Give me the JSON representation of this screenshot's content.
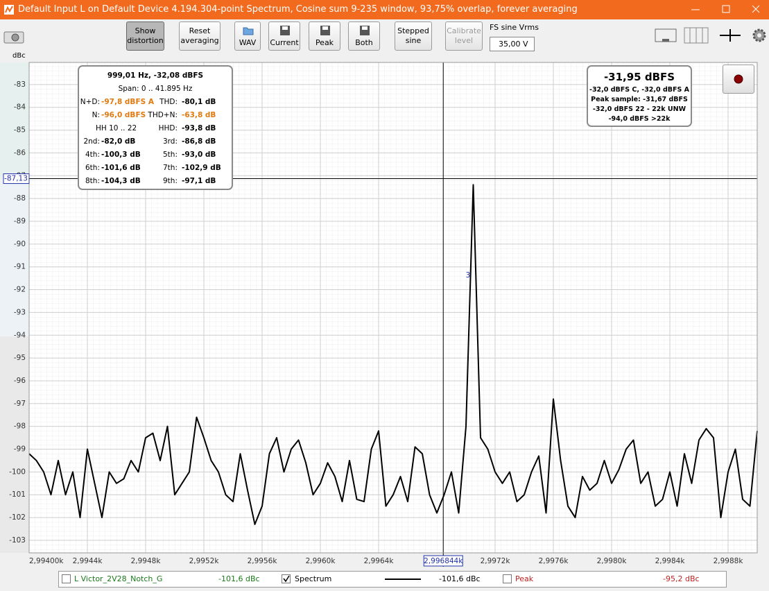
{
  "window": {
    "title": "Default Input L on Default Device 4.194.304-point Spectrum, Cosine sum 9-235 window, 93,75% overlap, forever averaging"
  },
  "toolbar": {
    "buttons": [
      "Show distortion",
      "Reset averaging",
      "WAV",
      "Current",
      "Peak",
      "Both",
      "Stepped sine",
      "Calibrate level"
    ],
    "fs_label": "FS sine Vrms",
    "fs_value": "35,00 V"
  },
  "distortion_panel": {
    "header": "999,01 Hz, -32,08 dBFS",
    "span": "Span: 0 .. 41.895 Hz",
    "rows": [
      [
        "N+D:",
        "-97,8 dBFS A",
        "THD:",
        "-80,1 dB"
      ],
      [
        "N:",
        "-96,0 dBFS",
        "THD+N:",
        "-63,8 dB"
      ],
      [
        "HH 10 .. 22",
        "HHD:",
        "-93,8 dB"
      ],
      [
        "2nd:",
        "-82,0 dB",
        "3rd:",
        "-86,8 dB"
      ],
      [
        "4th:",
        "-100,3 dB",
        "5th:",
        "-93,0 dB"
      ],
      [
        "6th:",
        "-101,6 dB",
        "7th:",
        "-102,9 dB"
      ],
      [
        "8th:",
        "-104,3 dB",
        "9th:",
        "-97,1 dB"
      ]
    ]
  },
  "level_panel": {
    "main": "-31,95 dBFS",
    "lines": [
      "-32,0 dBFS C, -32,0 dBFS A",
      "Peak sample: -31,67 dBFS",
      "-32,0 dBFS 22 - 22k UNW",
      "-94,0 dBFS >22k"
    ]
  },
  "legend_bar": {
    "items": [
      {
        "name": "L Victor_2V28_Notch_G",
        "value": "-101,6 dBc"
      },
      {
        "value": "-101,6 dBc"
      },
      {
        "name": "Peak",
        "value": "-95,2 dBc"
      }
    ]
  },
  "chart_data": {
    "type": "line",
    "y_label": "dBc",
    "annotation": "3",
    "xlim": [
      2994.0,
      2999.0
    ],
    "ylim": [
      -103.55,
      -82.03
    ],
    "xticks": [
      {
        "value": 2994.0,
        "label": "2,99400k"
      },
      {
        "value": 2994.4,
        "label": "2,9944k"
      },
      {
        "value": 2994.8,
        "label": "2,9948k"
      },
      {
        "value": 2995.2,
        "label": "2,9952k"
      },
      {
        "value": 2995.6,
        "label": "2,9956k"
      },
      {
        "value": 2996.0,
        "label": "2,9960k"
      },
      {
        "value": 2996.4,
        "label": "2,9964k"
      },
      {
        "value": 2997.2,
        "label": "2,9972k"
      },
      {
        "value": 2997.6,
        "label": "2,9976k"
      },
      {
        "value": 2998.0,
        "label": "2,9980k"
      },
      {
        "value": 2998.4,
        "label": "2,9984k"
      },
      {
        "value": 2998.8,
        "label": "2,9988k"
      }
    ],
    "yticks": [
      -83,
      -84,
      -85,
      -86,
      -87,
      -88,
      -89,
      -90,
      -91,
      -92,
      -93,
      -94,
      -95,
      -96,
      -97,
      -98,
      -99,
      -100,
      -101,
      -102,
      -103
    ],
    "grid": true,
    "cursor": {
      "x": {
        "value": 2996.844,
        "label": "2,996844k"
      },
      "y": {
        "value": -87.13,
        "label": "-87,13"
      }
    },
    "x": [
      2994,
      2994.05,
      2994.1,
      2994.15,
      2994.2,
      2994.25,
      2994.3,
      2994.35,
      2994.4,
      2994.45,
      2994.5,
      2994.55,
      2994.6,
      2994.65,
      2994.7,
      2994.75,
      2994.8,
      2994.85,
      2994.9,
      2994.95,
      2995,
      2995.05,
      2995.1,
      2995.15,
      2995.2,
      2995.25,
      2995.3,
      2995.35,
      2995.4,
      2995.45,
      2995.5,
      2995.55,
      2995.6,
      2995.65,
      2995.7,
      2995.75,
      2995.8,
      2995.85,
      2995.9,
      2995.95,
      2996,
      2996.05,
      2996.1,
      2996.15,
      2996.2,
      2996.25,
      2996.3,
      2996.35,
      2996.4,
      2996.45,
      2996.5,
      2996.55,
      2996.6,
      2996.65,
      2996.7,
      2996.75,
      2996.8,
      2996.85,
      2996.9,
      2996.95,
      2997,
      2997.05,
      2997.1,
      2997.15,
      2997.2,
      2997.25,
      2997.3,
      2997.35,
      2997.4,
      2997.45,
      2997.5,
      2997.55,
      2997.6,
      2997.65,
      2997.7,
      2997.75,
      2997.8,
      2997.85,
      2997.9,
      2997.95,
      2998,
      2998.05,
      2998.1,
      2998.15,
      2998.2,
      2998.25,
      2998.3,
      2998.35,
      2998.4,
      2998.45,
      2998.5,
      2998.55,
      2998.6,
      2998.65,
      2998.7,
      2998.75,
      2998.8,
      2998.85,
      2998.9,
      2998.95,
      2999
    ],
    "series": [
      {
        "name": "Spectrum",
        "color": "#000000",
        "values": [
          -99.2,
          -99.5,
          -100,
          -101,
          -99.5,
          -101,
          -100,
          -102,
          -99,
          -100.5,
          -102,
          -100,
          -100.5,
          -100.3,
          -99.5,
          -100,
          -98.5,
          -98.3,
          -99.5,
          -98,
          -101,
          -100.5,
          -100,
          -97.6,
          -98.5,
          -99.5,
          -100,
          -101,
          -101.3,
          -99.2,
          -100.8,
          -102.3,
          -101.5,
          -99.2,
          -98.5,
          -100,
          -99,
          -98.6,
          -99.6,
          -101,
          -100.5,
          -99.6,
          -100.2,
          -101.3,
          -99.5,
          -101.2,
          -101.3,
          -99,
          -98.2,
          -101.5,
          -101,
          -100.2,
          -101.3,
          -98.9,
          -99.2,
          -101,
          -101.8,
          -101,
          -100,
          -101.8,
          -98,
          -87.4,
          -98.5,
          -99,
          -100,
          -100.5,
          -100,
          -101.3,
          -101,
          -100,
          -99.3,
          -101.8,
          -96.8,
          -99.5,
          -101.5,
          -102,
          -100.2,
          -100.8,
          -100.5,
          -99.5,
          -100.5,
          -99.9,
          -99,
          -98.6,
          -100.5,
          -100,
          -101.5,
          -101.2,
          -100,
          -101.5,
          -99.2,
          -100.5,
          -98.6,
          -98.1,
          -98.5,
          -102,
          -100,
          -99,
          -101.2,
          -101.5,
          -98.2
        ]
      }
    ]
  }
}
